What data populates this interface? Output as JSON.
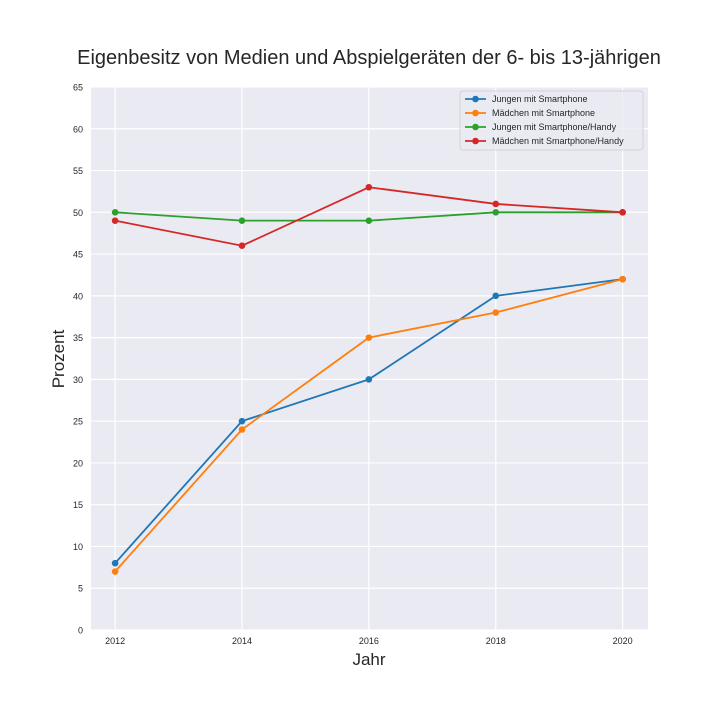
{
  "chart_data": {
    "type": "line",
    "title": "Eigenbesitz von Medien und Abspielgeräten der 6- bis 13-jährigen",
    "xlabel": "Jahr",
    "ylabel": "Prozent",
    "x": [
      2012,
      2014,
      2016,
      2018,
      2020
    ],
    "x_ticks": [
      "2012",
      "2014",
      "2016",
      "2018",
      "2020"
    ],
    "y_ticks": [
      "0",
      "5",
      "10",
      "15",
      "20",
      "25",
      "30",
      "35",
      "40",
      "45",
      "50",
      "55",
      "60",
      "65"
    ],
    "xlim": [
      2011.62,
      2020.4
    ],
    "ylim": [
      0,
      65
    ],
    "grid": true,
    "legend_position": "top-right",
    "series": [
      {
        "name": "Jungen mit Smartphone",
        "color": "#1f77b4",
        "values": [
          8,
          25,
          30,
          40,
          42
        ]
      },
      {
        "name": "Mädchen mit Smartphone",
        "color": "#ff7f0e",
        "values": [
          7,
          24,
          35,
          38,
          42
        ]
      },
      {
        "name": "Jungen mit Smartphone/Handy",
        "color": "#2ca02c",
        "values": [
          50,
          49,
          49,
          50,
          50
        ]
      },
      {
        "name": "Mädchen mit Smartphone/Handy",
        "color": "#d62728",
        "values": [
          49,
          46,
          53,
          51,
          50
        ]
      }
    ]
  }
}
